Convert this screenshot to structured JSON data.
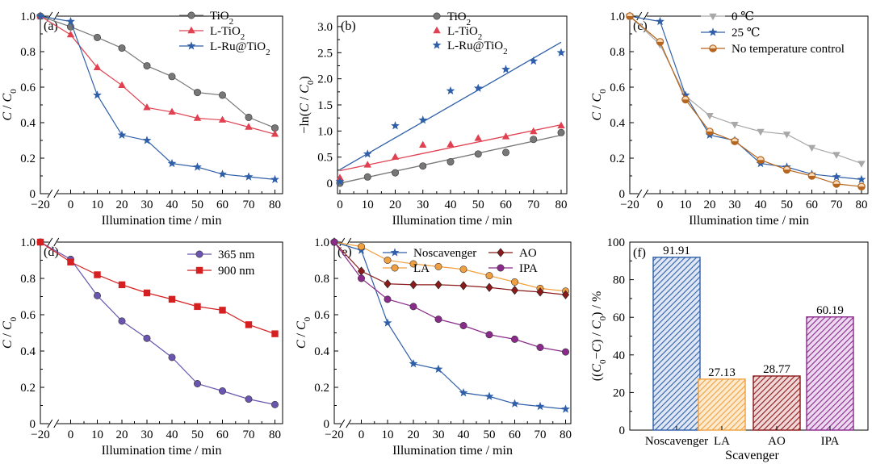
{
  "colors": {
    "tio2": "#777777",
    "ltio2": "#e04050",
    "lru": "#2f5fa8",
    "c0": "#a8a8a8",
    "c25": "#2f5fa8",
    "cnone": "#b5651d",
    "w365": "#6a55b0",
    "w900": "#d42020",
    "nosc": "#2f5fa8",
    "la": "#f0a040",
    "ao": "#8b1a1a",
    "ipa": "#8a2a8a"
  },
  "chart_data": [
    {
      "id": "a",
      "panel_label": "(a)",
      "type": "line",
      "xlabel": "Illumination time / min",
      "ylabel": "C / C0",
      "xlim": [
        -20,
        80
      ],
      "ylim": [
        0,
        1.0
      ],
      "x_break_after": -20,
      "x_ticks": [
        "-20",
        "0",
        "10",
        "20",
        "30",
        "40",
        "50",
        "60",
        "70",
        "80"
      ],
      "y_ticks": [
        "0",
        "0.2",
        "0.4",
        "0.6",
        "0.8",
        "1.0"
      ],
      "legend_position": "top-right",
      "series": [
        {
          "name": "TiO2",
          "label": "TiO",
          "sub": "2",
          "marker": "circle",
          "color_key": "tio2",
          "x": [
            -20,
            0,
            10,
            20,
            30,
            40,
            50,
            60,
            70,
            80
          ],
          "y": [
            1.0,
            0.94,
            0.88,
            0.82,
            0.72,
            0.66,
            0.57,
            0.555,
            0.43,
            0.37
          ]
        },
        {
          "name": "L-TiO2",
          "label": "L-TiO",
          "sub": "2",
          "marker": "triangle",
          "color_key": "ltio2",
          "x": [
            -20,
            0,
            10,
            20,
            30,
            40,
            50,
            60,
            70,
            80
          ],
          "y": [
            1.0,
            0.895,
            0.71,
            0.61,
            0.485,
            0.46,
            0.425,
            0.415,
            0.375,
            0.335
          ]
        },
        {
          "name": "L-Ru@TiO2",
          "label": "L-Ru@TiO",
          "sub": "2",
          "marker": "star",
          "color_key": "lru",
          "x": [
            -20,
            0,
            10,
            20,
            30,
            40,
            50,
            60,
            70,
            80
          ],
          "y": [
            1.0,
            0.97,
            0.555,
            0.33,
            0.3,
            0.17,
            0.15,
            0.11,
            0.095,
            0.08
          ]
        }
      ]
    },
    {
      "id": "b",
      "panel_label": "(b)",
      "type": "scatter",
      "xlabel": "Illumination time / min",
      "ylabel": "−ln(C / C0)",
      "xlim": [
        0,
        80
      ],
      "ylim": [
        -0.2,
        3.2
      ],
      "x_ticks": [
        "0",
        "10",
        "20",
        "30",
        "40",
        "50",
        "60",
        "70",
        "80"
      ],
      "y_ticks": [
        "0",
        "0.5",
        "1.0",
        "1.5",
        "2.0",
        "2.5",
        "3.0"
      ],
      "legend_position": "top-left",
      "series": [
        {
          "name": "TiO2",
          "label": "TiO",
          "sub": "2",
          "marker": "circle",
          "color_key": "tio2",
          "x": [
            0,
            10,
            20,
            30,
            40,
            50,
            60,
            70,
            80
          ],
          "y": [
            0.0,
            0.12,
            0.2,
            0.33,
            0.41,
            0.56,
            0.59,
            0.84,
            0.97
          ],
          "fit": [
            [
              0,
              0.0
            ],
            [
              80,
              0.92
            ]
          ]
        },
        {
          "name": "L-TiO2",
          "label": "L-TiO",
          "sub": "2",
          "marker": "triangle",
          "color_key": "ltio2",
          "x": [
            0,
            10,
            20,
            30,
            40,
            50,
            60,
            70,
            80
          ],
          "y": [
            0.1,
            0.35,
            0.5,
            0.73,
            0.74,
            0.86,
            0.89,
            0.99,
            1.1
          ],
          "fit": [
            [
              0,
              0.24
            ],
            [
              80,
              1.12
            ]
          ]
        },
        {
          "name": "L-Ru@TiO2",
          "label": "L-Ru@TiO",
          "sub": "2",
          "marker": "star",
          "color_key": "lru",
          "x": [
            0,
            10,
            20,
            30,
            40,
            50,
            60,
            70,
            80
          ],
          "y": [
            0.03,
            0.56,
            1.1,
            1.21,
            1.77,
            1.82,
            2.18,
            2.34,
            2.5
          ],
          "fit": [
            [
              0,
              0.26
            ],
            [
              80,
              2.7
            ]
          ]
        }
      ]
    },
    {
      "id": "c",
      "panel_label": "(c)",
      "type": "line",
      "xlabel": "Illumination time / min",
      "ylabel": "C / C0",
      "xlim": [
        -20,
        80
      ],
      "ylim": [
        0,
        1.0
      ],
      "x_break_after": -20,
      "x_ticks": [
        "-20",
        "0",
        "10",
        "20",
        "30",
        "40",
        "50",
        "60",
        "70",
        "80"
      ],
      "y_ticks": [
        "0",
        "0.2",
        "0.4",
        "0.6",
        "0.8",
        "1.0"
      ],
      "legend_position": "top-right",
      "series": [
        {
          "name": "0 ℃",
          "label": "0 ℃",
          "sub": "",
          "marker": "tri-down",
          "color_key": "c0",
          "x": [
            -20,
            0,
            10,
            20,
            30,
            40,
            50,
            60,
            70,
            80
          ],
          "y": [
            1.0,
            0.84,
            0.55,
            0.44,
            0.39,
            0.35,
            0.335,
            0.26,
            0.22,
            0.17
          ]
        },
        {
          "name": "25 ℃",
          "label": "25 ℃",
          "sub": "",
          "marker": "star",
          "color_key": "c25",
          "x": [
            -20,
            0,
            10,
            20,
            30,
            40,
            50,
            60,
            70,
            80
          ],
          "y": [
            1.0,
            0.97,
            0.555,
            0.33,
            0.3,
            0.17,
            0.15,
            0.11,
            0.095,
            0.08
          ]
        },
        {
          "name": "No temperature control",
          "label": "No temperature control",
          "sub": "",
          "marker": "circle-half",
          "color_key": "cnone",
          "x": [
            -20,
            0,
            10,
            20,
            30,
            40,
            50,
            60,
            70,
            80
          ],
          "y": [
            1.0,
            0.855,
            0.53,
            0.35,
            0.295,
            0.19,
            0.135,
            0.1,
            0.055,
            0.04
          ]
        }
      ]
    },
    {
      "id": "d",
      "panel_label": "(d)",
      "type": "line",
      "xlabel": "Illumination time / min",
      "ylabel": "C / C0",
      "xlim": [
        -20,
        80
      ],
      "ylim": [
        0,
        1.0
      ],
      "x_break_after": -20,
      "x_ticks": [
        "-20",
        "0",
        "10",
        "20",
        "30",
        "40",
        "50",
        "60",
        "70",
        "80"
      ],
      "y_ticks": [
        "0",
        "0.2",
        "0.4",
        "0.6",
        "0.8",
        "1.0"
      ],
      "legend_position": "top-right",
      "series": [
        {
          "name": "365 nm",
          "label": "365 nm",
          "sub": "",
          "marker": "circle",
          "color_key": "w365",
          "x": [
            -20,
            0,
            10,
            20,
            30,
            40,
            50,
            60,
            70,
            80
          ],
          "y": [
            1.0,
            0.905,
            0.705,
            0.565,
            0.47,
            0.365,
            0.22,
            0.18,
            0.135,
            0.105
          ]
        },
        {
          "name": "900 nm",
          "label": "900 nm",
          "sub": "",
          "marker": "square",
          "color_key": "w900",
          "x": [
            -20,
            0,
            10,
            20,
            30,
            40,
            50,
            60,
            70,
            80
          ],
          "y": [
            1.0,
            0.89,
            0.82,
            0.765,
            0.72,
            0.685,
            0.645,
            0.625,
            0.545,
            0.495
          ]
        }
      ]
    },
    {
      "id": "e",
      "panel_label": "(e)",
      "type": "line",
      "xlabel": "Illumination time / min",
      "ylabel": "C / C0",
      "xlim": [
        -20,
        80
      ],
      "ylim": [
        0,
        1.0
      ],
      "x_break_after": -20,
      "x_ticks": [
        "-20",
        "0",
        "10",
        "20",
        "30",
        "40",
        "50",
        "60",
        "70",
        "80"
      ],
      "y_ticks": [
        "0",
        "0.2",
        "0.4",
        "0.6",
        "0.8",
        "1.0"
      ],
      "legend_position": "top",
      "series": [
        {
          "name": "Noscavenger",
          "label": "Noscavenger",
          "sub": "",
          "marker": "star",
          "color_key": "nosc",
          "x": [
            -20,
            0,
            10,
            20,
            30,
            40,
            50,
            60,
            70,
            80
          ],
          "y": [
            1.0,
            0.955,
            0.555,
            0.33,
            0.3,
            0.17,
            0.15,
            0.11,
            0.095,
            0.08
          ]
        },
        {
          "name": "LA",
          "label": "LA",
          "sub": "",
          "marker": "circle",
          "color_key": "la",
          "x": [
            -20,
            0,
            10,
            20,
            30,
            40,
            50,
            60,
            70,
            80
          ],
          "y": [
            1.0,
            0.975,
            0.9,
            0.88,
            0.865,
            0.85,
            0.815,
            0.78,
            0.745,
            0.73
          ]
        },
        {
          "name": "AO",
          "label": "AO",
          "sub": "",
          "marker": "diamond",
          "color_key": "ao",
          "x": [
            -20,
            0,
            10,
            20,
            30,
            40,
            50,
            60,
            70,
            80
          ],
          "y": [
            1.0,
            0.84,
            0.77,
            0.765,
            0.765,
            0.76,
            0.75,
            0.735,
            0.725,
            0.71
          ]
        },
        {
          "name": "IPA",
          "label": "IPA",
          "sub": "",
          "marker": "circle",
          "color_key": "ipa",
          "x": [
            -20,
            0,
            10,
            20,
            30,
            40,
            50,
            60,
            70,
            80
          ],
          "y": [
            1.0,
            0.8,
            0.685,
            0.645,
            0.575,
            0.54,
            0.49,
            0.465,
            0.42,
            0.395
          ]
        }
      ]
    },
    {
      "id": "f",
      "panel_label": "(f)",
      "type": "bar",
      "xlabel": "Scavenger",
      "ylabel": "((C0−C) / C0) / %",
      "ylim": [
        0,
        100
      ],
      "y_ticks": [
        "0",
        "20",
        "40",
        "60",
        "80",
        "100"
      ],
      "categories": [
        "Noscavenger",
        "LA",
        "AO",
        "IPA"
      ],
      "values": [
        91.91,
        27.13,
        28.77,
        60.19
      ],
      "value_labels": [
        "91.91",
        "27.13",
        "28.77",
        "60.19"
      ],
      "bar_colors": [
        "#2f5fa8",
        "#f0a040",
        "#8b1a1a",
        "#8a2a8a"
      ]
    }
  ]
}
